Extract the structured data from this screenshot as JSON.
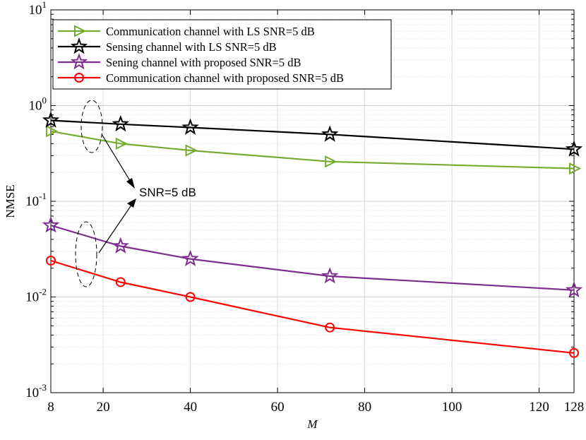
{
  "chart_data": {
    "type": "line",
    "xlabel": "M",
    "ylabel": "NMSE",
    "yscale": "log",
    "xlim": [
      8,
      128
    ],
    "ylim": [
      0.001,
      10
    ],
    "grid": true,
    "x_ticks": [
      {
        "value": 8,
        "label": "8"
      },
      {
        "value": 20,
        "label": "20"
      },
      {
        "value": 40,
        "label": "40"
      },
      {
        "value": 60,
        "label": "60"
      },
      {
        "value": 80,
        "label": "80"
      },
      {
        "value": 100,
        "label": "100"
      },
      {
        "value": 120,
        "label": "120"
      },
      {
        "value": 128,
        "label": "128"
      }
    ],
    "y_ticks": [
      {
        "value": 0.001,
        "base": "10",
        "exp": "-3"
      },
      {
        "value": 0.01,
        "base": "10",
        "exp": "-2"
      },
      {
        "value": 0.1,
        "base": "10",
        "exp": "-1"
      },
      {
        "value": 1,
        "base": "10",
        "exp": "0"
      },
      {
        "value": 10,
        "base": "10",
        "exp": "1"
      }
    ],
    "legend_position": "top-left",
    "x": [
      8,
      24,
      40,
      72,
      128
    ],
    "series": [
      {
        "name": "Communication channel with LS SNR=5 dB",
        "color": "#77ac30",
        "marker": "triangle-right",
        "values": [
          0.54,
          0.4,
          0.34,
          0.26,
          0.22
        ]
      },
      {
        "name": "Sensing channel with LS SNR=5 dB",
        "color": "#000000",
        "marker": "star",
        "values": [
          0.7,
          0.64,
          0.59,
          0.5,
          0.35
        ]
      },
      {
        "name": "Sening channel with proposed SNR=5 dB",
        "color": "#7e2f8e",
        "marker": "star",
        "values": [
          0.056,
          0.034,
          0.025,
          0.0165,
          0.0118
        ]
      },
      {
        "name": "Communication channel with proposed SNR=5 dB",
        "color": "#ff0000",
        "marker": "circle",
        "values": [
          0.024,
          0.0143,
          0.01,
          0.0048,
          0.0026
        ]
      }
    ],
    "annotations": [
      {
        "text": "SNR=5 dB",
        "targets": "upper and lower curve groups"
      }
    ]
  }
}
